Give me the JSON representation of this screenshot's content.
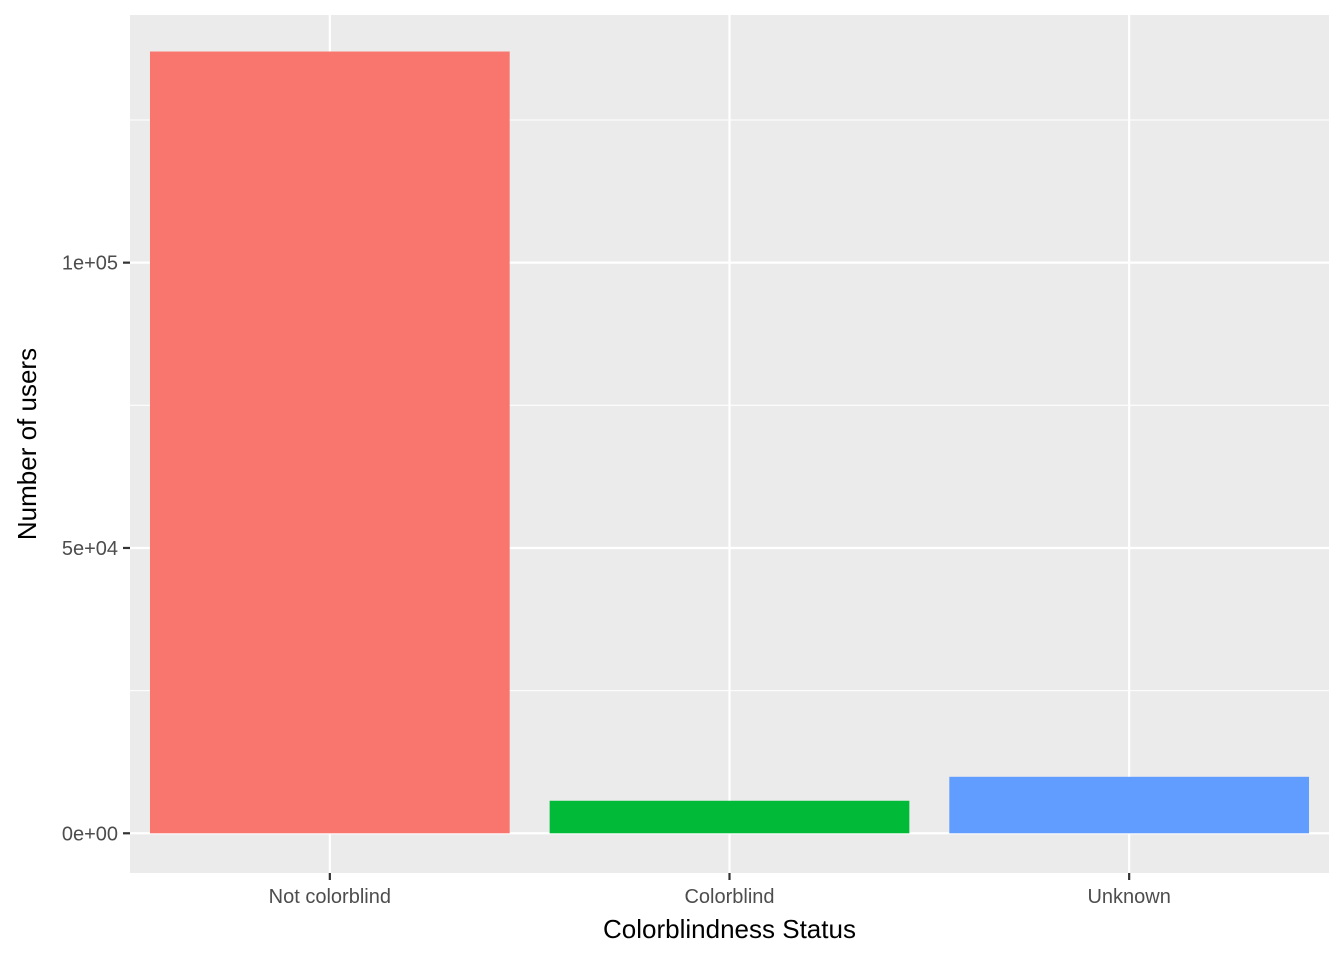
{
  "chart_data": {
    "type": "bar",
    "categories": [
      "Not colorblind",
      "Colorblind",
      "Unknown"
    ],
    "values": [
      137000,
      5700,
      9900
    ],
    "xlabel": "Colorblindness Status",
    "ylabel": "Number of users",
    "ylim": [
      -6960,
      143400
    ],
    "yticks": {
      "major": [
        0,
        50000,
        100000
      ],
      "minor": [
        25000,
        75000,
        125000
      ],
      "labels": [
        "0e+00",
        "5e+04",
        "1e+05"
      ]
    },
    "grid": true,
    "legend": "none",
    "colors": {
      "bars": [
        "#F8766D",
        "#00BA38",
        "#619CFF"
      ],
      "panel_background": "#EBEBEB",
      "grid": "#FFFFFF"
    }
  }
}
